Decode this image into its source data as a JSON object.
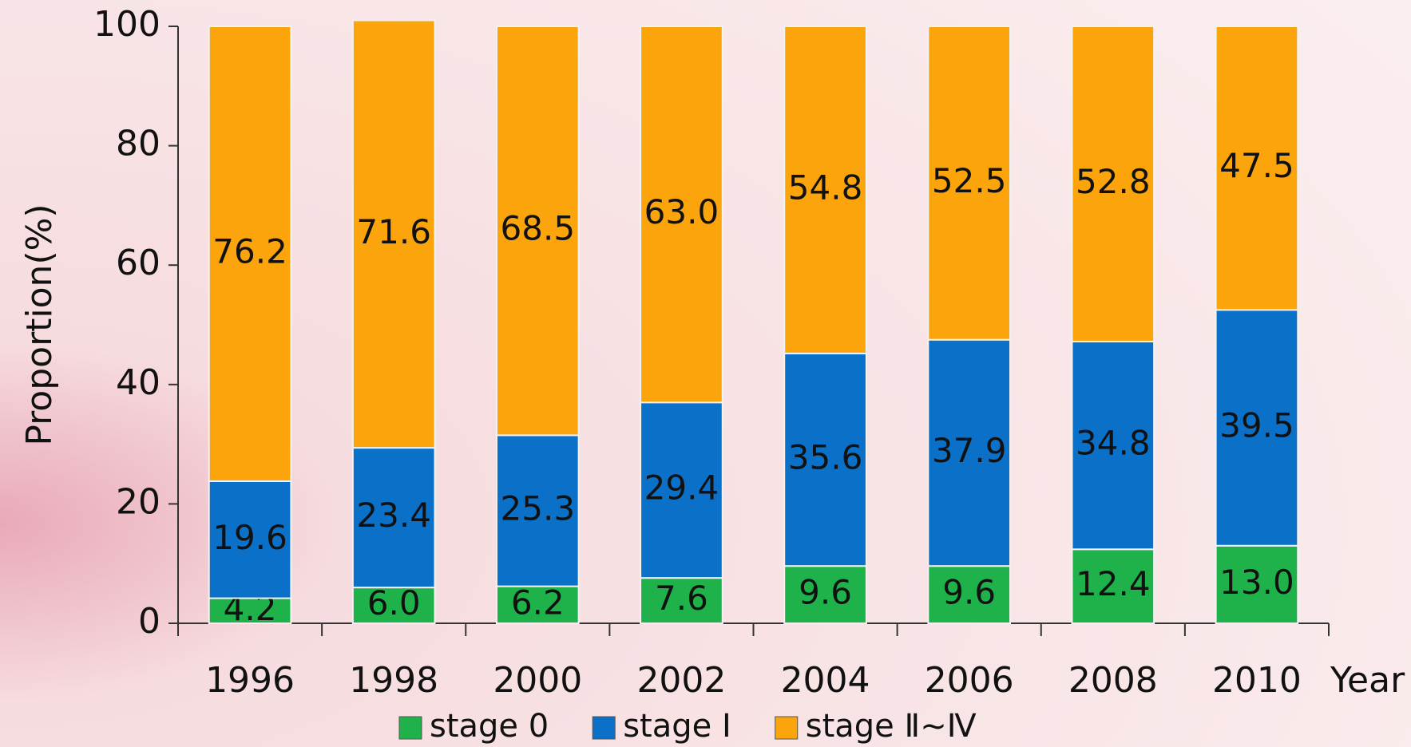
{
  "chart_data": {
    "type": "stacked_bar",
    "y_label": "Proportion(%)",
    "x_label": "Year",
    "categories": [
      "1996",
      "1998",
      "2000",
      "2002",
      "2004",
      "2006",
      "2008",
      "2010"
    ],
    "series": [
      {
        "name": "stage 0",
        "color": "#1fb24a",
        "values": [
          4.2,
          6.0,
          6.2,
          7.6,
          9.6,
          9.6,
          12.4,
          13.0
        ],
        "value_labels": [
          "4.2",
          "6.0",
          "6.2",
          "7.6",
          "9.6",
          "9.6",
          "12.4",
          "13.0"
        ]
      },
      {
        "name": "stage Ⅰ",
        "color": "#0a70c8",
        "values": [
          19.6,
          23.4,
          25.3,
          29.4,
          35.6,
          37.9,
          34.8,
          39.5
        ],
        "value_labels": [
          "19.6",
          "23.4",
          "25.3",
          "29.4",
          "35.6",
          "37.9",
          "34.8",
          "39.5"
        ]
      },
      {
        "name": "stage Ⅱ~Ⅳ",
        "color": "#fba40c",
        "values": [
          76.2,
          71.6,
          68.5,
          63.0,
          54.8,
          52.5,
          52.8,
          47.5
        ],
        "value_labels": [
          "76.2",
          "71.6",
          "68.5",
          "63.0",
          "54.8",
          "52.5",
          "52.8",
          "47.5"
        ]
      }
    ],
    "ylim": [
      0,
      100
    ],
    "yticks": [
      0,
      20,
      40,
      60,
      80,
      100
    ],
    "legend": "bottom"
  }
}
